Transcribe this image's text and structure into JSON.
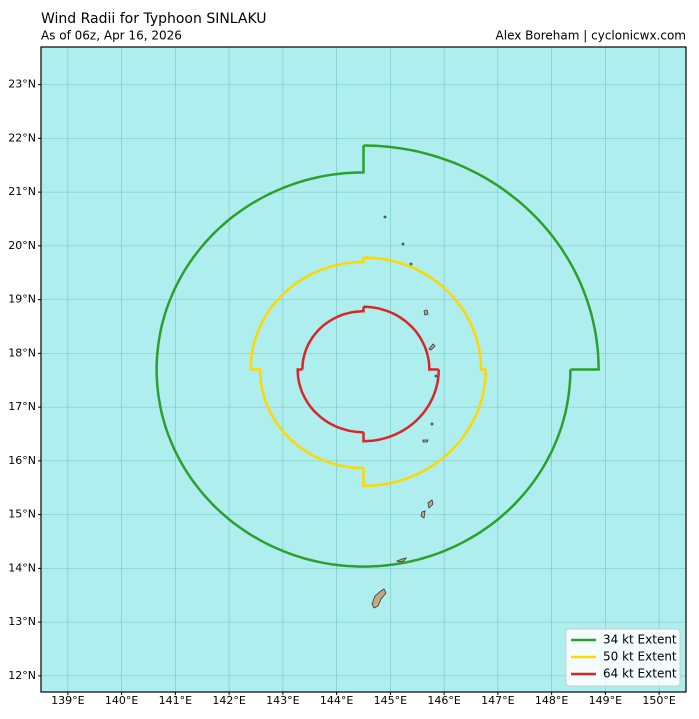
{
  "chart_data": {
    "type": "wind_radii",
    "title": "Wind Radii for Typhoon SINLAKU",
    "subtitle": "As of 06z, Apr 16, 2026",
    "credit": "Alex Boreham | cyclonicwx.com",
    "center": [
      144.5,
      17.7
    ],
    "series": [
      {
        "name": "34 kt Extent",
        "color": "#2ca02c",
        "values": [
          250,
          220,
          220,
          220
        ]
      },
      {
        "name": "50 kt Extent",
        "color": "#ffd700",
        "values": [
          125,
          130,
          110,
          120
        ]
      },
      {
        "name": "64 kt Extent",
        "color": "#d62728",
        "values": [
          70,
          80,
          70,
          65
        ]
      }
    ],
    "xlim": [
      138.5,
      150.5
    ],
    "ylim": [
      11.7,
      23.7
    ],
    "xticks": [
      {
        "value": 139,
        "label": "139°E"
      },
      {
        "value": 140,
        "label": "140°E"
      },
      {
        "value": 141,
        "label": "141°E"
      },
      {
        "value": 142,
        "label": "142°E"
      },
      {
        "value": 143,
        "label": "143°E"
      },
      {
        "value": 144,
        "label": "144°E"
      },
      {
        "value": 145,
        "label": "145°E"
      },
      {
        "value": 146,
        "label": "146°E"
      },
      {
        "value": 147,
        "label": "147°E"
      },
      {
        "value": 148,
        "label": "148°E"
      },
      {
        "value": 149,
        "label": "149°E"
      },
      {
        "value": 150,
        "label": "150°E"
      }
    ],
    "yticks": [
      {
        "value": 12,
        "label": "12°N"
      },
      {
        "value": 13,
        "label": "13°N"
      },
      {
        "value": 14,
        "label": "14°N"
      },
      {
        "value": 15,
        "label": "15°N"
      },
      {
        "value": 16,
        "label": "16°N"
      },
      {
        "value": 17,
        "label": "17°N"
      },
      {
        "value": 18,
        "label": "18°N"
      },
      {
        "value": 19,
        "label": "19°N"
      },
      {
        "value": 20,
        "label": "20°N"
      },
      {
        "value": 21,
        "label": "21°N"
      },
      {
        "value": 22,
        "label": "22°N"
      },
      {
        "value": 23,
        "label": "23°N"
      }
    ],
    "grid": true,
    "legend": "lower right"
  }
}
